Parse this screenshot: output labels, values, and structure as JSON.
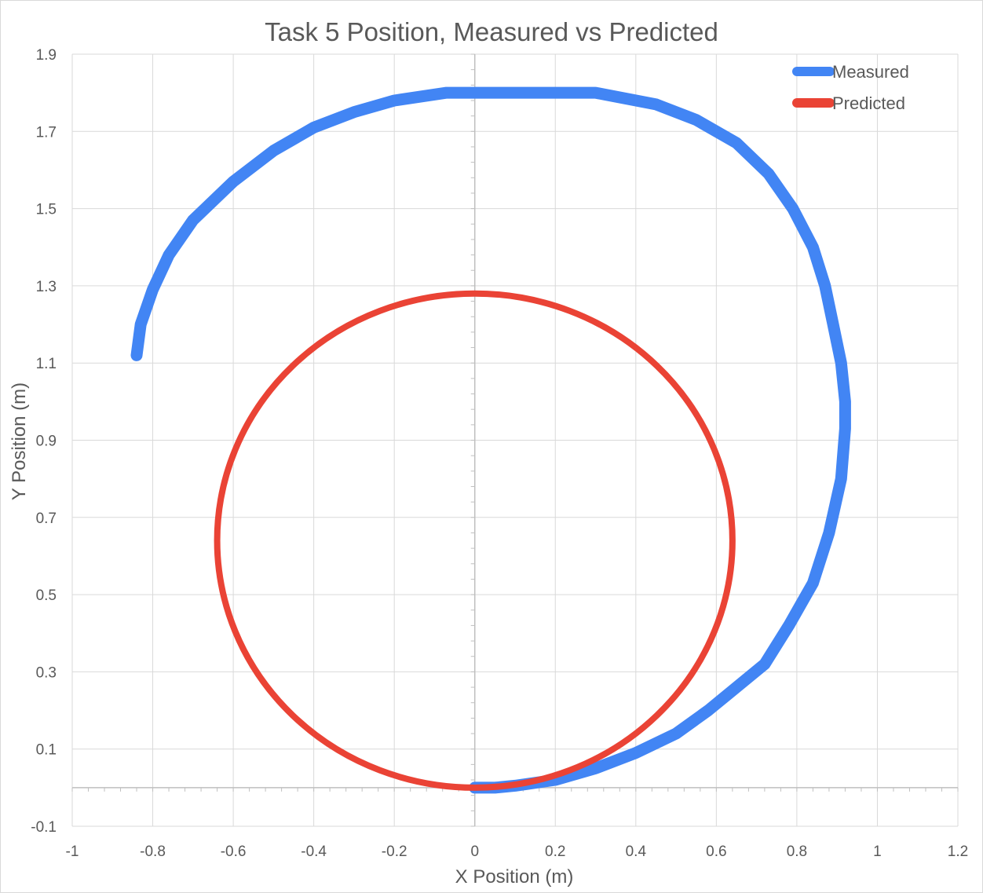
{
  "chart_data": {
    "type": "scatter",
    "title": "Task 5 Position, Measured vs Predicted",
    "xlabel": "X Position (m)",
    "ylabel": "Y Position (m)",
    "xlim": [
      -1,
      1.2
    ],
    "ylim": [
      -0.1,
      1.9
    ],
    "x_ticks": [
      -1,
      -0.8,
      -0.6,
      -0.4,
      -0.2,
      0,
      0.2,
      0.4,
      0.6,
      0.8,
      1,
      1.2
    ],
    "y_ticks": [
      -0.1,
      0.1,
      0.3,
      0.5,
      0.7,
      0.9,
      1.1,
      1.3,
      1.5,
      1.7,
      1.9
    ],
    "x_tick_labels": [
      "-1",
      "-0.8",
      "-0.6",
      "-0.4",
      "-0.2",
      "0",
      "0.2",
      "0.4",
      "0.6",
      "0.8",
      "1",
      "1.2"
    ],
    "y_tick_labels": [
      "-0.1",
      "0.1",
      "0.3",
      "0.5",
      "0.7",
      "0.9",
      "1.1",
      "1.3",
      "1.5",
      "1.7",
      "1.9"
    ],
    "grid": true,
    "legend_position": "top-right",
    "series": [
      {
        "name": "Measured",
        "color": "#4285f4",
        "x": [
          0,
          0.05,
          0.1,
          0.2,
          0.3,
          0.4,
          0.5,
          0.58,
          0.65,
          0.72,
          0.78,
          0.84,
          0.88,
          0.91,
          0.92,
          0.92,
          0.91,
          0.89,
          0.87,
          0.84,
          0.79,
          0.73,
          0.65,
          0.55,
          0.45,
          0.3,
          0.15,
          0.05,
          -0.07,
          -0.2,
          -0.3,
          -0.4,
          -0.5,
          -0.6,
          -0.7,
          -0.76,
          -0.8,
          -0.83,
          -0.84
        ],
        "y": [
          0,
          0,
          0.005,
          0.02,
          0.05,
          0.09,
          0.14,
          0.2,
          0.26,
          0.32,
          0.42,
          0.53,
          0.66,
          0.8,
          0.93,
          1.0,
          1.1,
          1.2,
          1.3,
          1.4,
          1.5,
          1.59,
          1.67,
          1.73,
          1.77,
          1.8,
          1.8,
          1.8,
          1.8,
          1.78,
          1.75,
          1.71,
          1.65,
          1.57,
          1.47,
          1.38,
          1.29,
          1.2,
          1.12
        ]
      },
      {
        "name": "Predicted",
        "color": "#ea4335",
        "center": [
          0,
          0.64
        ],
        "radius": 0.64,
        "x": [
          0,
          0.32,
          0.554,
          0.64,
          0.554,
          0.32,
          0,
          -0.32,
          -0.554,
          -0.64,
          -0.554,
          -0.32,
          0
        ],
        "y": [
          0,
          0.086,
          0.32,
          0.64,
          0.96,
          1.194,
          1.28,
          1.194,
          0.96,
          0.64,
          0.32,
          0.086,
          0
        ]
      }
    ]
  }
}
